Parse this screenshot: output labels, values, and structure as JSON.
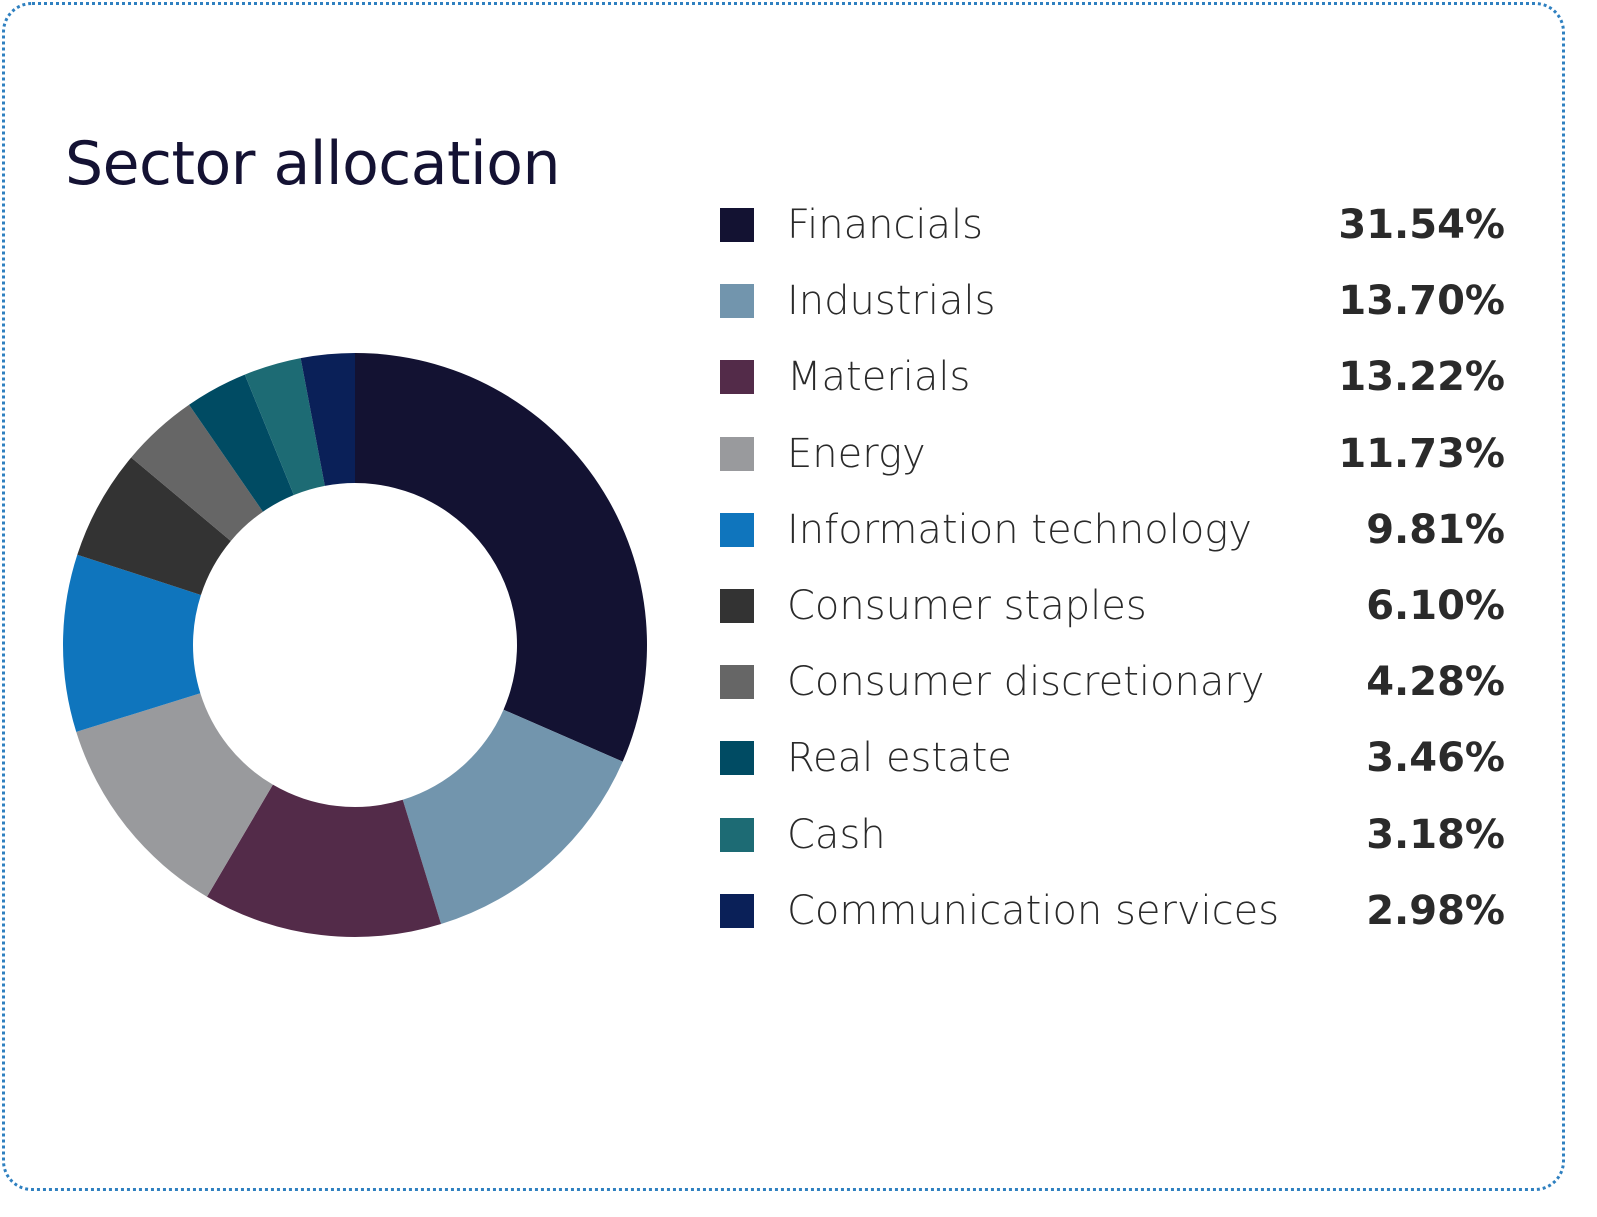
{
  "title": "Sector allocation",
  "chart_data": {
    "type": "pie",
    "variant": "donut",
    "title": "Sector allocation",
    "legend_placement": "right",
    "categories": [
      "Financials",
      "Industrials",
      "Materials",
      "Energy",
      "Information technology",
      "Consumer staples",
      "Consumer discretionary",
      "Real estate",
      "Cash",
      "Communication services"
    ],
    "values": [
      31.54,
      13.7,
      13.22,
      11.73,
      9.81,
      6.1,
      4.28,
      3.46,
      3.18,
      2.98
    ],
    "value_labels": [
      "31.54%",
      "13.70%",
      "13.22%",
      "11.73%",
      "9.81%",
      "6.10%",
      "4.28%",
      "3.46%",
      "3.18%",
      "2.98%"
    ],
    "colors": [
      "#131232",
      "#7295ad",
      "#532b49",
      "#999a9d",
      "#0f75bd",
      "#333333",
      "#666666",
      "#004b63",
      "#1d6b74",
      "#0a2058"
    ]
  }
}
